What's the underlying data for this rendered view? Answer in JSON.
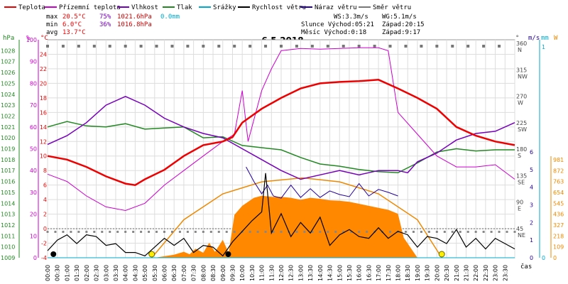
{
  "legend": [
    {
      "label": "Teplota",
      "color": "#ee0000"
    },
    {
      "label": "Přízemní teplota",
      "color": "#cc00cc"
    },
    {
      "label": "Vlhkost",
      "color": "#7700bb"
    },
    {
      "label": "Tlak",
      "color": "#228822"
    },
    {
      "label": "Srážky",
      "color": "#00aacc"
    },
    {
      "label": "Rychlost větru",
      "color": "#000000"
    },
    {
      "label": "Náraz větru",
      "color": "#220099"
    },
    {
      "label": "Směr větru",
      "color": "#777777"
    }
  ],
  "stats": {
    "max_label": "max",
    "max_temp": "20.5°C",
    "max_hum": "75%",
    "max_press": "1021.6hPa",
    "max_rain": "0.0mm",
    "min_label": "min",
    "min_temp": "6.0°C",
    "min_hum": "36%",
    "min_press": "1016.8hPa",
    "avg_label": "avg",
    "avg_temp": "13.7°C"
  },
  "wind_info": {
    "ws": "WS:3.3m/s",
    "wg": "WG:5.1m/s"
  },
  "astro": {
    "sun": "Slunce Východ:05:21",
    "sun_set": "Západ:20:15",
    "moon": "Měsíc  Východ:0:18",
    "moon_set": "Západ:9:17"
  },
  "date": "6.5.2018",
  "axis_units": {
    "hpa": "hPa",
    "pct": "%",
    "degc": "°C",
    "deg": "°",
    "ms": "m/s",
    "mm": "mm",
    "wm2": "W",
    "cas": "čas"
  },
  "colors": {
    "temp": "#ee0000",
    "ground": "#cc00cc",
    "hum": "#7700bb",
    "press": "#228822",
    "rain": "#00aacc",
    "wind": "#000000",
    "gust": "#220099",
    "dir": "#777777",
    "solar": "#ff8800",
    "sun": "#ee8800"
  },
  "chart_data": {
    "type": "line",
    "title": "6.5.2018",
    "xlabel": "čas",
    "x_ticks": [
      "00:00",
      "00:30",
      "01:00",
      "01:30",
      "02:00",
      "02:30",
      "03:00",
      "03:30",
      "04:00",
      "04:30",
      "05:00",
      "05:30",
      "06:00",
      "06:30",
      "07:00",
      "07:30",
      "08:00",
      "08:30",
      "09:00",
      "09:30",
      "10:00",
      "10:30",
      "11:00",
      "11:30",
      "12:00",
      "12:30",
      "13:00",
      "13:30",
      "14:00",
      "14:30",
      "15:00",
      "15:30",
      "16:00",
      "16:30",
      "17:00",
      "17:30",
      "18:00",
      "18:30",
      "19:00",
      "19:30",
      "20:00",
      "20:30",
      "21:00",
      "21:30",
      "22:00",
      "22:30",
      "23:00",
      "23:30"
    ],
    "pressure_axis": {
      "label": "hPa",
      "range": [
        1009,
        1029
      ],
      "ticks": [
        1009,
        1010,
        1011,
        1012,
        1013,
        1014,
        1015,
        1016,
        1017,
        1018,
        1019,
        1020,
        1021,
        1022,
        1023,
        1024,
        1025,
        1026,
        1027,
        1028
      ]
    },
    "humidity_axis": {
      "label": "%",
      "range": [
        0,
        100
      ],
      "ticks": [
        0,
        10,
        20,
        30,
        40,
        50,
        60,
        70,
        80,
        90,
        100
      ]
    },
    "temperature_axis": {
      "label": "°C",
      "range": [
        -4,
        26
      ],
      "ticks": [
        -4,
        -2,
        0,
        2,
        4,
        6,
        8,
        10,
        12,
        14,
        16,
        18,
        20,
        22,
        24
      ]
    },
    "direction_axis": {
      "label": "°",
      "ticks": [
        {
          "deg": 45,
          "name": "NE"
        },
        {
          "deg": 90,
          "name": "E"
        },
        {
          "deg": 135,
          "name": "SE"
        },
        {
          "deg": 180,
          "name": "S"
        },
        {
          "deg": 225,
          "name": "SW"
        },
        {
          "deg": 270,
          "name": "W"
        },
        {
          "deg": 315,
          "name": "NW"
        },
        {
          "deg": 360,
          "name": "N"
        }
      ]
    },
    "wind_axis": {
      "label": "m/s",
      "range": [
        0,
        6
      ],
      "ticks": [
        0,
        1,
        2,
        3,
        4,
        5,
        6
      ]
    },
    "rain_axis": {
      "label": "mm",
      "range": [
        0,
        1
      ],
      "ticks": [
        0,
        1
      ]
    },
    "solar_axis": {
      "label": "W",
      "range": [
        0,
        981
      ],
      "ticks": [
        0,
        109,
        218,
        327,
        436,
        545,
        654,
        763,
        872,
        981
      ]
    },
    "series": [
      {
        "name": "Teplota",
        "key": "temp",
        "axis": "temperature",
        "x_hours": [
          0,
          1,
          2,
          3,
          4,
          4.5,
          5,
          6,
          7,
          8,
          9,
          9.5,
          10,
          11,
          12,
          13,
          14,
          15,
          16,
          17,
          18,
          19,
          20,
          21,
          22,
          23,
          24
        ],
        "values": [
          10,
          9.5,
          8.5,
          7.2,
          6.2,
          6.0,
          6.8,
          8.1,
          10,
          11.5,
          12,
          12.6,
          14.6,
          16.5,
          18,
          19.3,
          20,
          20.2,
          20.3,
          20.5,
          19.3,
          18,
          16.5,
          14,
          12.8,
          12,
          11.5
        ]
      },
      {
        "name": "Přízemní teplota",
        "key": "ground",
        "axis": "temperature",
        "x_hours": [
          0,
          1,
          2,
          3,
          4,
          5,
          6,
          7,
          8,
          9,
          9.6,
          10,
          10.3,
          11,
          11.5,
          12,
          13,
          14,
          15,
          16,
          17,
          17.5,
          18,
          19,
          20,
          21,
          22,
          23,
          24
        ],
        "values": [
          7.5,
          6.5,
          4.5,
          3,
          2.5,
          3.5,
          6,
          8,
          10,
          12,
          13,
          19,
          12,
          19,
          22,
          24.5,
          24.8,
          24.7,
          24.8,
          24.9,
          24.9,
          24.5,
          16,
          13,
          10,
          8.5,
          8.5,
          8.8,
          6.8
        ]
      },
      {
        "name": "Vlhkost",
        "key": "hum",
        "axis": "humidity",
        "x_hours": [
          0,
          1,
          2,
          3,
          4,
          5,
          6,
          7,
          8,
          9,
          10,
          11,
          12,
          13,
          14,
          15,
          16,
          17,
          18,
          18.5,
          19,
          20,
          21,
          22,
          23,
          24
        ],
        "values": [
          52,
          56,
          62,
          70,
          74,
          70,
          64,
          60,
          57,
          55,
          50,
          45,
          40,
          36,
          38,
          40,
          38,
          40,
          40,
          39,
          44,
          48,
          54,
          57,
          58,
          62
        ]
      },
      {
        "name": "Tlak",
        "key": "press",
        "axis": "pressure",
        "x_hours": [
          0,
          1,
          2,
          3,
          4,
          5,
          6,
          7,
          8,
          9,
          10,
          11,
          12,
          13,
          14,
          15,
          16,
          17,
          18,
          19,
          20,
          21,
          22,
          23,
          24
        ],
        "values": [
          1021,
          1021.5,
          1021.1,
          1021,
          1021.3,
          1020.8,
          1020.9,
          1021,
          1020,
          1020.1,
          1019.3,
          1019.1,
          1018.9,
          1018.2,
          1017.6,
          1017.4,
          1017.1,
          1016.9,
          1016.8,
          1017.7,
          1018.7,
          1019,
          1018.8,
          1018.9,
          1018.9
        ]
      },
      {
        "name": "Rychlost větru",
        "key": "wind",
        "axis": "wind",
        "x_hours": [
          0,
          0.5,
          1,
          1.5,
          2,
          2.5,
          3,
          3.5,
          4,
          4.5,
          5,
          5.5,
          6,
          6.5,
          7,
          7.5,
          8,
          8.5,
          9,
          9.5,
          10,
          10.5,
          11,
          11.2,
          11.5,
          12,
          12.5,
          13,
          13.5,
          14,
          14.5,
          15,
          15.5,
          16,
          16.5,
          17,
          17.5,
          18,
          18.5,
          19,
          19.5,
          20,
          20.5,
          21,
          21.5,
          22,
          22.5,
          23,
          23.5,
          24
        ],
        "values": [
          0.4,
          1.0,
          1.3,
          0.8,
          1.3,
          1.2,
          0.7,
          0.8,
          0.3,
          0.3,
          0.1,
          0.6,
          1.1,
          0.7,
          1.1,
          0.3,
          0.7,
          0.6,
          0.1,
          0.9,
          1.5,
          2.1,
          2.6,
          4.8,
          1.4,
          2.5,
          1.2,
          2.0,
          1.4,
          2.3,
          0.7,
          1.3,
          1.6,
          1.2,
          1.1,
          1.7,
          1.1,
          1.5,
          1.3,
          0.6,
          1.2,
          1.1,
          0.8,
          1.6,
          0.6,
          1.1,
          0.5,
          1.1,
          0.8,
          0.5
        ]
      },
      {
        "name": "Náraz větru",
        "key": "gust",
        "axis": "temperature",
        "x_hours": [
          10.2,
          10.6,
          11,
          11.3,
          11.6,
          12,
          12.5,
          13,
          13.5,
          14,
          14.5,
          15,
          15.5,
          16,
          16.5,
          17,
          17.5,
          18
        ],
        "values": [
          8.5,
          6.5,
          4.8,
          6,
          4.5,
          4.2,
          6,
          4.3,
          5.5,
          4.3,
          5.2,
          4.7,
          4.4,
          6.2,
          4.5,
          5.4,
          5.0,
          4.5
        ]
      },
      {
        "name": "Srážky",
        "key": "rain",
        "axis": "rain",
        "x_hours": [
          0,
          24
        ],
        "values": [
          0,
          0
        ]
      },
      {
        "name": "Solar",
        "key": "solar",
        "axis": "solar",
        "x_hours": [
          0,
          5.5,
          6.5,
          7,
          7.3,
          7.6,
          8,
          8.3,
          8.6,
          9,
          9.3,
          9.6,
          10,
          10.3,
          10.6,
          11,
          11.5,
          12,
          12.5,
          13,
          13.5,
          14,
          14.5,
          15,
          15.5,
          16,
          16.5,
          17,
          17.5,
          18,
          18.3,
          19,
          24
        ],
        "values": [
          0,
          0,
          30,
          60,
          35,
          90,
          50,
          150,
          60,
          180,
          50,
          430,
          520,
          560,
          600,
          620,
          610,
          610,
          600,
          580,
          600,
          590,
          575,
          570,
          560,
          540,
          520,
          500,
          480,
          440,
          200,
          0,
          0
        ]
      },
      {
        "name": "Sun",
        "key": "sun",
        "axis": "solar",
        "x_hours": [
          5.35,
          7,
          9,
          11,
          13.1,
          15,
          17,
          19,
          20.25
        ],
        "values": [
          0,
          380,
          640,
          760,
          800,
          760,
          640,
          380,
          0
        ]
      }
    ],
    "wind_direction": {
      "x_hours": [
        0,
        0.8,
        1.6,
        2.4,
        3.2,
        4,
        4.8,
        5.6,
        6.4,
        7.2,
        8,
        8.8,
        9.6,
        10.4,
        11.2,
        12,
        12.8,
        13.6,
        14.4,
        15.2,
        16,
        16.8,
        17.6,
        18.4,
        19.2,
        20,
        20.8,
        21.6,
        22.4,
        23.2
      ],
      "deg": [
        360,
        360,
        360,
        360,
        360,
        360,
        360,
        360,
        360,
        360,
        360,
        360,
        360,
        360,
        360,
        360,
        360,
        360,
        360,
        360,
        360,
        360,
        360,
        360,
        360,
        360,
        360,
        360,
        360,
        360
      ]
    },
    "celestial_events": [
      {
        "type": "moon",
        "hour": 0.3
      },
      {
        "type": "sun",
        "hour": 5.35
      },
      {
        "type": "moon",
        "hour": 9.28
      },
      {
        "type": "sun",
        "hour": 20.25
      }
    ]
  }
}
